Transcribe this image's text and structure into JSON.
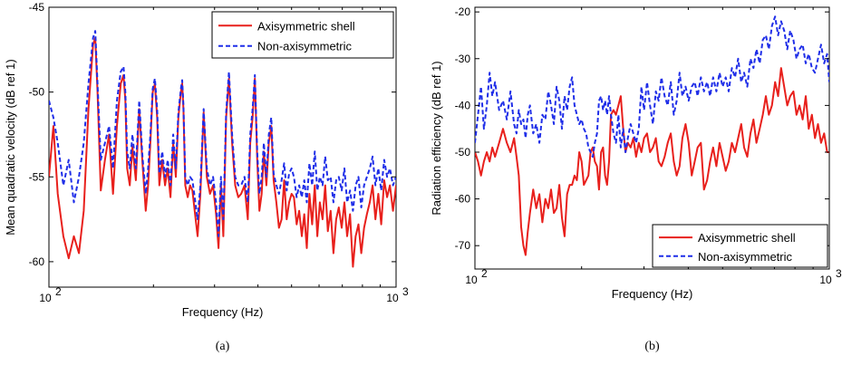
{
  "colors": {
    "axisymmetric": "#e8201c",
    "non_axisymmetric": "#1f2ee8"
  },
  "chart_data": [
    {
      "type": "line",
      "caption": "(a)",
      "xlabel": "Frequency (Hz)",
      "ylabel": "Mean quadratic velocity (dB ref 1)",
      "xscale": "log",
      "xlim": [
        100,
        1000
      ],
      "ylim": [
        -61.5,
        -45
      ],
      "yticks": [
        -60,
        -55,
        -50,
        -45
      ],
      "xtick_labels": [
        {
          "base": "10",
          "exp": "2"
        },
        {
          "base": "10",
          "exp": "3"
        }
      ],
      "legend": "top-right",
      "grid": false,
      "series": [
        {
          "name": "Axisymmetric shell",
          "style": "solid",
          "x": [
            100,
            103,
            106,
            110,
            114,
            118,
            122,
            126,
            130,
            134,
            136,
            138,
            141,
            145,
            149,
            153,
            157,
            161,
            164,
            166,
            168,
            171,
            174,
            178,
            182,
            186,
            190,
            193,
            196,
            199,
            202,
            205,
            208,
            212,
            216,
            220,
            224,
            228,
            232,
            236,
            240,
            242,
            244,
            247,
            251,
            255,
            259,
            263,
            268,
            273,
            279,
            285,
            291,
            297,
            303,
            308,
            313,
            318,
            324,
            330,
            337,
            344,
            351,
            358,
            366,
            374,
            380,
            386,
            392,
            398,
            404,
            410,
            416,
            423,
            430,
            437,
            444,
            452,
            460,
            468,
            476,
            484,
            492,
            500,
            508,
            517,
            526,
            535,
            544,
            553,
            563,
            573,
            583,
            593,
            603,
            614,
            625,
            636,
            648,
            660,
            672,
            684,
            697,
            710,
            723,
            737,
            751,
            765,
            779,
            794,
            809,
            824,
            840,
            856,
            872,
            889,
            906,
            924,
            942,
            960,
            980,
            1000
          ],
          "y": [
            -55,
            -52,
            -56,
            -58.5,
            -59.8,
            -58.5,
            -59.5,
            -57,
            -51,
            -47.2,
            -46.8,
            -50,
            -55.8,
            -54,
            -52.5,
            -56,
            -52,
            -49.5,
            -49,
            -50.5,
            -54.5,
            -55.5,
            -53.2,
            -55.2,
            -51,
            -54.2,
            -57,
            -55.5,
            -53,
            -50,
            -49.5,
            -51.5,
            -55.5,
            -54,
            -55.5,
            -54.5,
            -56.2,
            -53,
            -55,
            -51.5,
            -50,
            -49.5,
            -51,
            -55.5,
            -56.2,
            -55.5,
            -55.8,
            -57,
            -58.5,
            -56,
            -51.2,
            -55,
            -56,
            -55.5,
            -57.2,
            -59.2,
            -55.5,
            -58.5,
            -51.5,
            -49.2,
            -53,
            -55.5,
            -56.2,
            -56,
            -55.5,
            -57.5,
            -53,
            -51.5,
            -49.2,
            -54,
            -57,
            -56,
            -53.5,
            -55.5,
            -53,
            -52,
            -55.2,
            -56.5,
            -58,
            -57.5,
            -55.2,
            -57.5,
            -56.5,
            -56,
            -56.2,
            -57.8,
            -57,
            -58.5,
            -57.2,
            -59.2,
            -56,
            -57.8,
            -55.5,
            -58.5,
            -56.5,
            -57.5,
            -55.5,
            -58.2,
            -57,
            -59.5,
            -57.5,
            -56.8,
            -58,
            -56.5,
            -58.5,
            -57.2,
            -60.3,
            -58.5,
            -57.8,
            -59.5,
            -58,
            -57.2,
            -56.5,
            -55.5,
            -57.5,
            -56,
            -57.8,
            -55.2,
            -56.2,
            -55.5,
            -57,
            -55.5
          ]
        },
        {
          "name": "Non-axisymmetric",
          "style": "dashed",
          "x": [
            100,
            103,
            106,
            110,
            114,
            118,
            122,
            126,
            130,
            134,
            136,
            138,
            141,
            145,
            149,
            153,
            157,
            161,
            164,
            166,
            168,
            171,
            174,
            178,
            182,
            186,
            190,
            193,
            196,
            199,
            202,
            205,
            208,
            212,
            216,
            220,
            224,
            228,
            232,
            236,
            240,
            242,
            244,
            247,
            251,
            255,
            259,
            263,
            268,
            273,
            279,
            285,
            291,
            297,
            303,
            308,
            313,
            318,
            324,
            330,
            337,
            344,
            351,
            358,
            366,
            374,
            380,
            386,
            392,
            398,
            404,
            410,
            416,
            423,
            430,
            437,
            444,
            452,
            460,
            468,
            476,
            484,
            492,
            500,
            508,
            517,
            526,
            535,
            544,
            553,
            563,
            573,
            583,
            593,
            603,
            614,
            625,
            636,
            648,
            660,
            672,
            684,
            697,
            710,
            723,
            737,
            751,
            765,
            779,
            794,
            809,
            824,
            840,
            856,
            872,
            889,
            906,
            924,
            942,
            960,
            980,
            1000
          ],
          "y": [
            -50.5,
            -51.5,
            -53,
            -55.5,
            -54,
            -56.5,
            -55,
            -53,
            -49.5,
            -46.8,
            -46.4,
            -49.5,
            -54,
            -53,
            -52,
            -54.5,
            -50.5,
            -48.8,
            -48.5,
            -50,
            -53.5,
            -54.5,
            -52.5,
            -54.5,
            -50.5,
            -53.8,
            -56,
            -54.5,
            -52.5,
            -49.8,
            -49.2,
            -51,
            -54.8,
            -53.5,
            -55,
            -54,
            -55.5,
            -52.5,
            -54.5,
            -51.2,
            -49.8,
            -49.3,
            -50.8,
            -55,
            -55.5,
            -55,
            -55.2,
            -56.2,
            -57.5,
            -55.5,
            -51,
            -54.5,
            -55.5,
            -55,
            -56.5,
            -58.5,
            -55,
            -57.5,
            -51.2,
            -48.8,
            -52.5,
            -55,
            -55.5,
            -55.5,
            -55,
            -56.5,
            -52.5,
            -51,
            -49,
            -53.5,
            -56,
            -55,
            -53,
            -55,
            -52.5,
            -51.5,
            -54.8,
            -55.5,
            -56,
            -55.2,
            -54.2,
            -55.8,
            -54.8,
            -54.5,
            -55,
            -56.2,
            -55.5,
            -56.2,
            -55.2,
            -56.5,
            -54.2,
            -55.5,
            -53.5,
            -55.8,
            -55,
            -55.5,
            -53.8,
            -55.2,
            -55,
            -56.5,
            -55.2,
            -55,
            -55.8,
            -54.5,
            -56.5,
            -55.8,
            -57,
            -55.5,
            -55,
            -56.8,
            -55.5,
            -55,
            -54.5,
            -53.8,
            -55.5,
            -54.5,
            -55.8,
            -54,
            -55,
            -54.5,
            -55.5,
            -55
          ]
        }
      ]
    },
    {
      "type": "line",
      "caption": "(b)",
      "xlabel": "Frequency (Hz)",
      "ylabel": "Radiation efficiency (dB ref 1)",
      "xscale": "log",
      "xlim": [
        100,
        1000
      ],
      "ylim": [
        -75,
        -19
      ],
      "yticks": [
        -70,
        -60,
        -50,
        -40,
        -30,
        -20
      ],
      "xtick_labels": [
        {
          "base": "10",
          "exp": "2"
        },
        {
          "base": "10",
          "exp": "3"
        }
      ],
      "legend": "bottom-right",
      "grid": false,
      "series": [
        {
          "name": "Axisymmetric shell",
          "style": "solid",
          "x": [
            100,
            102,
            104,
            106,
            108,
            110,
            112,
            114,
            117,
            120,
            123,
            126,
            129,
            131,
            133,
            135,
            137,
            139,
            141,
            143,
            146,
            149,
            152,
            155,
            158,
            161,
            164,
            167,
            170,
            173,
            176,
            179,
            182,
            185,
            188,
            191,
            194,
            197,
            200,
            203,
            206,
            209,
            212,
            215,
            218,
            221,
            224,
            227,
            230,
            233,
            236,
            239,
            242,
            246,
            250,
            254,
            258,
            262,
            266,
            270,
            275,
            280,
            285,
            290,
            295,
            300,
            306,
            312,
            318,
            324,
            330,
            336,
            343,
            350,
            357,
            364,
            371,
            378,
            385,
            393,
            401,
            409,
            417,
            425,
            434,
            443,
            452,
            461,
            470,
            480,
            490,
            500,
            510,
            520,
            531,
            542,
            553,
            564,
            575,
            587,
            599,
            611,
            623,
            636,
            649,
            662,
            675,
            689,
            703,
            717,
            731,
            746,
            761,
            776,
            792,
            808,
            824,
            841,
            858,
            875,
            893,
            911,
            929,
            948,
            967,
            986,
            1000
          ],
          "y": [
            -50,
            -52,
            -55,
            -52,
            -50,
            -52,
            -49,
            -51,
            -48,
            -45,
            -48,
            -50,
            -47,
            -51,
            -55,
            -66,
            -70,
            -72,
            -67,
            -63,
            -58,
            -62,
            -59,
            -65,
            -60,
            -62,
            -58,
            -63,
            -62,
            -57,
            -64,
            -68,
            -59,
            -57,
            -57,
            -55,
            -56,
            -50,
            -52,
            -57,
            -56,
            -55,
            -50,
            -49,
            -52,
            -53,
            -58,
            -50,
            -49,
            -55,
            -57,
            -52,
            -42,
            -41,
            -42,
            -40,
            -38,
            -45,
            -50,
            -48,
            -49,
            -47,
            -51,
            -48,
            -50,
            -47,
            -46,
            -50,
            -49,
            -47,
            -52,
            -53,
            -51,
            -48,
            -46,
            -52,
            -55,
            -53,
            -47,
            -44,
            -48,
            -55,
            -52,
            -49,
            -48,
            -58,
            -56,
            -52,
            -49,
            -53,
            -48,
            -51,
            -54,
            -52,
            -48,
            -50,
            -47,
            -44,
            -49,
            -51,
            -46,
            -43,
            -48,
            -45,
            -42,
            -38,
            -42,
            -40,
            -35,
            -38,
            -32,
            -36,
            -40,
            -38,
            -37,
            -42,
            -40,
            -43,
            -38,
            -45,
            -42,
            -47,
            -44,
            -48,
            -46,
            -50,
            -50
          ]
        },
        {
          "name": "Non-axisymmetric",
          "style": "dashed",
          "x": [
            100,
            102,
            104,
            106,
            108,
            110,
            112,
            114,
            117,
            120,
            123,
            126,
            129,
            131,
            133,
            135,
            137,
            139,
            141,
            143,
            146,
            149,
            152,
            155,
            158,
            161,
            164,
            167,
            170,
            173,
            176,
            179,
            182,
            185,
            188,
            191,
            194,
            197,
            200,
            203,
            206,
            209,
            212,
            215,
            218,
            221,
            224,
            227,
            230,
            233,
            236,
            239,
            242,
            246,
            250,
            254,
            258,
            262,
            266,
            270,
            275,
            280,
            285,
            290,
            295,
            300,
            306,
            312,
            318,
            324,
            330,
            336,
            343,
            350,
            357,
            364,
            371,
            378,
            385,
            393,
            401,
            409,
            417,
            425,
            434,
            443,
            452,
            461,
            470,
            480,
            490,
            500,
            510,
            520,
            531,
            542,
            553,
            564,
            575,
            587,
            599,
            611,
            623,
            636,
            649,
            662,
            675,
            689,
            703,
            717,
            731,
            746,
            761,
            776,
            792,
            808,
            824,
            841,
            858,
            875,
            893,
            911,
            929,
            948,
            967,
            986,
            1000
          ],
          "y": [
            -48,
            -42,
            -36,
            -45,
            -40,
            -33,
            -38,
            -35,
            -41,
            -39,
            -43,
            -37,
            -44,
            -46,
            -41,
            -44,
            -43,
            -47,
            -42,
            -40,
            -46,
            -44,
            -48,
            -42,
            -43,
            -37,
            -40,
            -44,
            -36,
            -39,
            -45,
            -38,
            -41,
            -36,
            -34,
            -40,
            -42,
            -44,
            -43,
            -45,
            -46,
            -49,
            -50,
            -51,
            -48,
            -46,
            -39,
            -38,
            -41,
            -39,
            -42,
            -38,
            -42,
            -46,
            -48,
            -42,
            -49,
            -45,
            -50,
            -47,
            -44,
            -46,
            -48,
            -45,
            -36,
            -41,
            -35,
            -40,
            -44,
            -37,
            -39,
            -34,
            -38,
            -40,
            -35,
            -42,
            -39,
            -33,
            -38,
            -36,
            -39,
            -36,
            -35,
            -38,
            -34,
            -37,
            -35,
            -38,
            -34,
            -37,
            -33,
            -36,
            -34,
            -37,
            -32,
            -34,
            -30,
            -35,
            -33,
            -36,
            -30,
            -32,
            -28,
            -31,
            -26,
            -25,
            -28,
            -23,
            -21,
            -25,
            -22,
            -24,
            -28,
            -24,
            -26,
            -30,
            -28,
            -27,
            -31,
            -29,
            -32,
            -33,
            -30,
            -27,
            -31,
            -29,
            -35
          ]
        }
      ]
    }
  ]
}
